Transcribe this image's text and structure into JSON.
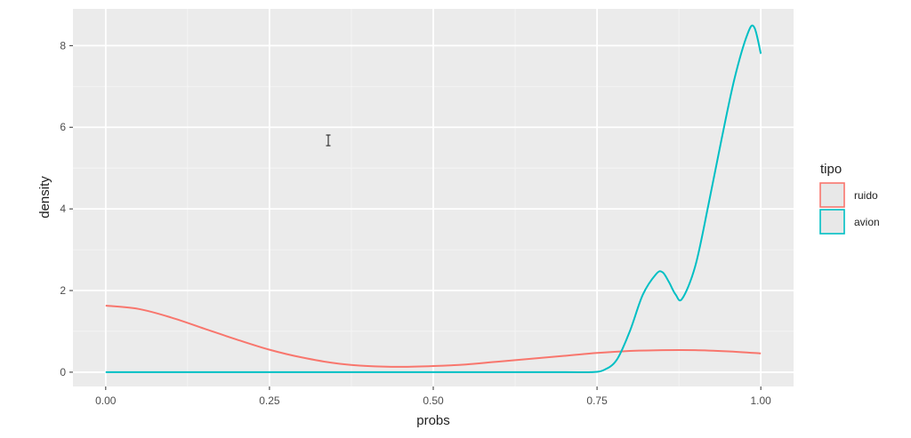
{
  "chart_data": {
    "type": "line",
    "title": "",
    "xlabel": "probs",
    "ylabel": "density",
    "xlim": [
      -0.05,
      1.05
    ],
    "ylim": [
      -0.35,
      8.9
    ],
    "x_ticks": [
      0.0,
      0.25,
      0.5,
      0.75,
      1.0
    ],
    "x_tick_labels": [
      "0.00",
      "0.25",
      "0.50",
      "0.75",
      "1.00"
    ],
    "y_ticks": [
      0,
      2,
      4,
      6,
      8
    ],
    "y_tick_labels": [
      "0",
      "2",
      "4",
      "6",
      "8"
    ],
    "grid": true,
    "background": "#ebebeb",
    "legend": {
      "title": "tipo",
      "position": "right"
    },
    "series": [
      {
        "name": "ruido",
        "color": "#f8766d",
        "x": [
          0.0,
          0.05,
          0.1,
          0.15,
          0.2,
          0.25,
          0.3,
          0.35,
          0.4,
          0.45,
          0.5,
          0.55,
          0.6,
          0.65,
          0.7,
          0.75,
          0.8,
          0.85,
          0.9,
          0.95,
          1.0
        ],
        "y": [
          1.63,
          1.55,
          1.34,
          1.07,
          0.8,
          0.55,
          0.36,
          0.22,
          0.15,
          0.13,
          0.15,
          0.19,
          0.26,
          0.33,
          0.4,
          0.47,
          0.52,
          0.54,
          0.54,
          0.51,
          0.46
        ]
      },
      {
        "name": "avion",
        "color": "#00bfc4",
        "x": [
          0.0,
          0.1,
          0.2,
          0.3,
          0.4,
          0.5,
          0.6,
          0.7,
          0.74,
          0.76,
          0.78,
          0.8,
          0.82,
          0.84,
          0.85,
          0.86,
          0.87,
          0.88,
          0.9,
          0.92,
          0.94,
          0.96,
          0.98,
          0.99,
          1.0
        ],
        "y": [
          0,
          0,
          0,
          0,
          0,
          0,
          0,
          0,
          0.0,
          0.05,
          0.3,
          1.0,
          1.9,
          2.4,
          2.45,
          2.2,
          1.9,
          1.8,
          2.6,
          4.1,
          5.7,
          7.2,
          8.3,
          8.45,
          7.8
        ]
      }
    ]
  }
}
